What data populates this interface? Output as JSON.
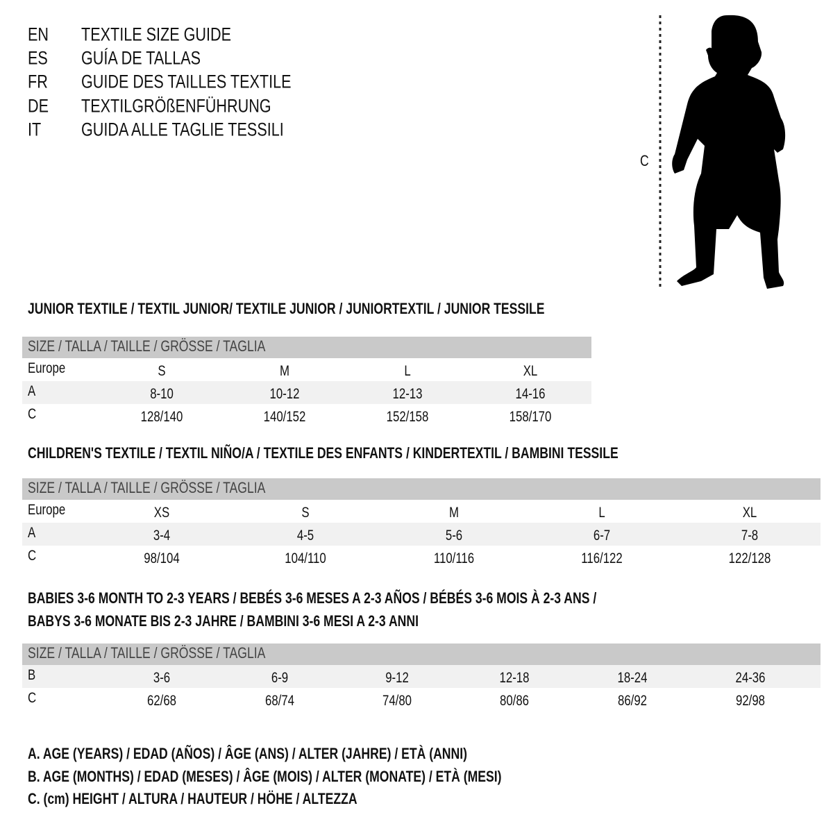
{
  "languages": [
    {
      "code": "EN",
      "title": "TEXTILE SIZE GUIDE"
    },
    {
      "code": "ES",
      "title": "GUÍA DE TALLAS"
    },
    {
      "code": "FR",
      "title": "GUIDE DES TAILLES TEXTILE"
    },
    {
      "code": "DE",
      "title": "TEXTILGRÖßENFÜHRUNG"
    },
    {
      "code": "IT",
      "title": "GUIDA ALLE TAGLIE TESSILI"
    }
  ],
  "figure": {
    "label": "C",
    "icon": "child-silhouette-icon"
  },
  "junior": {
    "heading": "JUNIOR TEXTILE / TEXTIL JUNIOR/ TEXTILE JUNIOR / JUNIORTEXTIL / JUNIOR TESSILE",
    "header": "SIZE / TALLA / TAILLE / GRÖSSE / TAGLIA",
    "rows": [
      {
        "label": "Europe",
        "values": [
          "S",
          "M",
          "L",
          "XL"
        ]
      },
      {
        "label": "A",
        "values": [
          "8-10",
          "10-12",
          "12-13",
          "14-16"
        ]
      },
      {
        "label": "C",
        "values": [
          "128/140",
          "140/152",
          "152/158",
          "158/170"
        ]
      }
    ]
  },
  "children": {
    "heading": "CHILDREN'S TEXTILE / TEXTIL NIÑO/A / TEXTILE DES ENFANTS / KINDERTEXTIL / BAMBINI TESSILE",
    "header": "SIZE / TALLA / TAILLE / GRÖSSE / TAGLIA",
    "rows": [
      {
        "label": "Europe",
        "values": [
          "XS",
          "S",
          "M",
          "L",
          "XL"
        ]
      },
      {
        "label": "A",
        "values": [
          "3-4",
          "4-5",
          "5-6",
          "6-7",
          "7-8"
        ]
      },
      {
        "label": "C",
        "values": [
          "98/104",
          "104/110",
          "110/116",
          "116/122",
          "122/128"
        ]
      }
    ]
  },
  "babies": {
    "heading_line1": "BABIES 3-6 MONTH TO 2-3 YEARS / BEBÉS 3-6 MESES A 2-3 AÑOS / BÉBÉS 3-6 MOIS À 2-3 ANS /",
    "heading_line2": "BABYS 3-6 MONATE BIS 2-3 JAHRE / BAMBINI 3-6 MESI A 2-3 ANNI",
    "header": "SIZE / TALLA / TAILLE / GRÖSSE / TAGLIA",
    "rows": [
      {
        "label": "B",
        "values": [
          "3-6",
          "6-9",
          "9-12",
          "12-18",
          "18-24",
          "24-36"
        ]
      },
      {
        "label": "C",
        "values": [
          "62/68",
          "68/74",
          "74/80",
          "80/86",
          "86/92",
          "92/98"
        ]
      }
    ]
  },
  "legend": [
    "A. AGE (YEARS) / EDAD (AÑOS) / ÂGE (ANS) / ALTER (JAHRE) / ETÀ (ANNI)",
    "B. AGE (MONTHS) / EDAD (MESES) / ÂGE (MOIS) / ALTER (MONATE) / ETÀ (MESI)",
    "C. (cm) HEIGHT / ALTURA / HAUTEUR / HÖHE / ALTEZZA"
  ],
  "colors": {
    "header_band": "#c9c9c9",
    "alt_band": "#f1f1f1"
  }
}
